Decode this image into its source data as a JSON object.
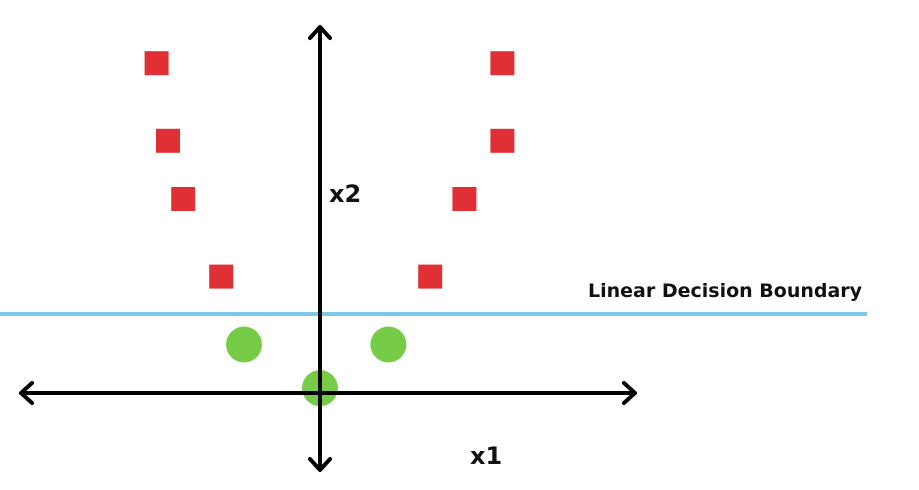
{
  "axes": {
    "x_label": "x1",
    "y_label": "x2"
  },
  "boundary": {
    "label": "Linear Decision Boundary",
    "color": "#7ec8e6"
  },
  "classes": {
    "red_color": "#e03035",
    "green_color": "#77cc47",
    "red_points": [
      [
        -4.3,
        6.8
      ],
      [
        -4.0,
        5.2
      ],
      [
        -3.6,
        4.0
      ],
      [
        -2.6,
        2.4
      ],
      [
        4.8,
        6.8
      ],
      [
        4.8,
        5.2
      ],
      [
        3.8,
        4.0
      ],
      [
        2.9,
        2.4
      ]
    ],
    "green_points": [
      [
        -2.0,
        1.0
      ],
      [
        1.8,
        1.0
      ],
      [
        0,
        0.1
      ]
    ]
  }
}
